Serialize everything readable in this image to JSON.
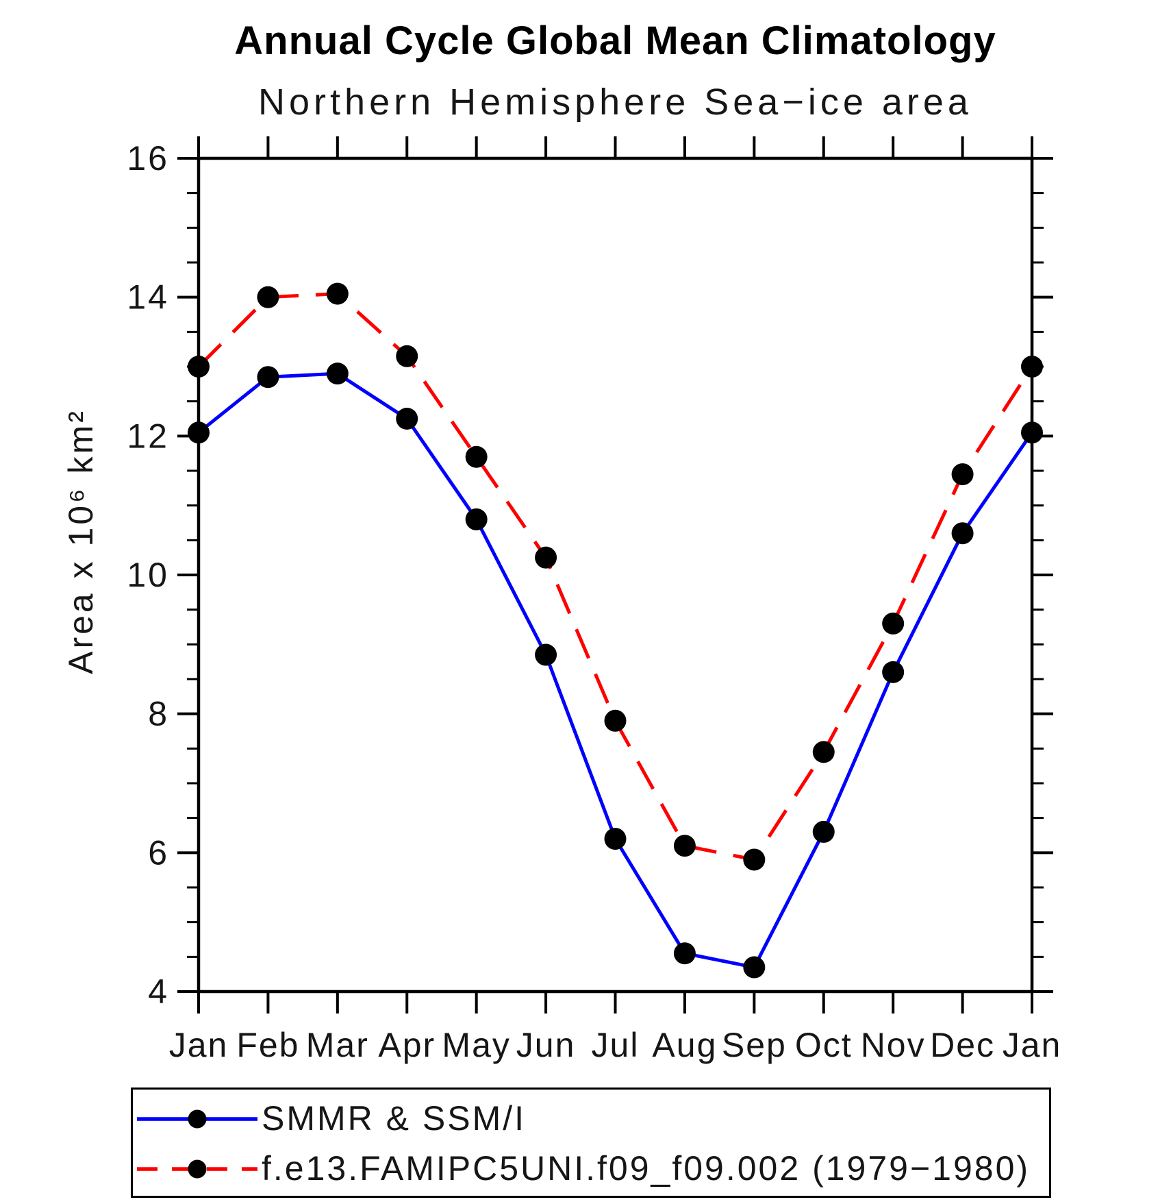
{
  "chart_data": {
    "type": "line",
    "title": "Annual Cycle Global Mean Climatology",
    "subtitle": "Northern Hemisphere Sea−ice area",
    "ylabel": "Area x 10⁶ km²",
    "xlabel": "",
    "categories": [
      "Jan",
      "Feb",
      "Mar",
      "Apr",
      "May",
      "Jun",
      "Jul",
      "Aug",
      "Sep",
      "Oct",
      "Nov",
      "Dec",
      "Jan"
    ],
    "ylim": [
      4,
      16
    ],
    "ytick_major_step": 2,
    "ytick_minor_step": 0.5,
    "ytick_labels": [
      "4",
      "6",
      "8",
      "10",
      "12",
      "14",
      "16"
    ],
    "grid": "off",
    "legend_position": "bottom-box",
    "marker_color": "#000000",
    "axis_color": "#000000",
    "background_color": "#ffffff",
    "series": [
      {
        "name": "SMMR & SSM/I",
        "color": "#0000ff",
        "style": "solid",
        "marker": "filled-circle",
        "values": [
          12.05,
          12.85,
          12.9,
          12.25,
          10.8,
          8.85,
          6.2,
          4.55,
          4.35,
          6.3,
          8.6,
          10.6,
          12.05
        ]
      },
      {
        "name": "f.e13.FAMIPC5UNI.f09_f09.002 (1979−1980)",
        "color": "#ff0000",
        "style": "dashed",
        "marker": "filled-circle",
        "values": [
          13.0,
          14.0,
          14.05,
          13.15,
          11.7,
          10.25,
          7.9,
          6.1,
          5.9,
          7.45,
          9.3,
          11.45,
          13.0
        ]
      }
    ]
  }
}
